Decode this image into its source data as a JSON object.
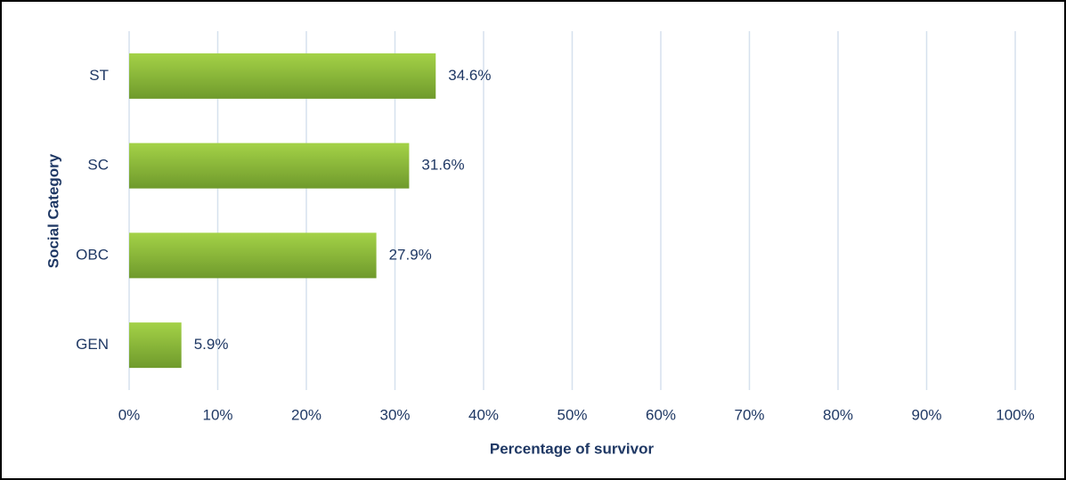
{
  "chart_data": {
    "type": "bar",
    "orientation": "horizontal",
    "x_label": "Percentage of survivor",
    "y_label": "Social Category",
    "categories": [
      "ST",
      "SC",
      "OBC",
      "GEN"
    ],
    "values": [
      34.6,
      31.6,
      27.9,
      5.9
    ],
    "value_labels": [
      "34.6%",
      "31.6%",
      "27.9%",
      "5.9%"
    ],
    "color": "#8cbf3a",
    "xlim": [
      0,
      100
    ],
    "xticks": [
      {
        "value": 0,
        "label": "0%"
      },
      {
        "value": 10,
        "label": "10%"
      },
      {
        "value": 20,
        "label": "20%"
      },
      {
        "value": 30,
        "label": "30%"
      },
      {
        "value": 40,
        "label": "40%"
      },
      {
        "value": 50,
        "label": "50%"
      },
      {
        "value": 60,
        "label": "60%"
      },
      {
        "value": 70,
        "label": "70%"
      },
      {
        "value": 80,
        "label": "80%"
      },
      {
        "value": 90,
        "label": "90%"
      },
      {
        "value": 100,
        "label": "100%"
      }
    ],
    "grid": true
  }
}
